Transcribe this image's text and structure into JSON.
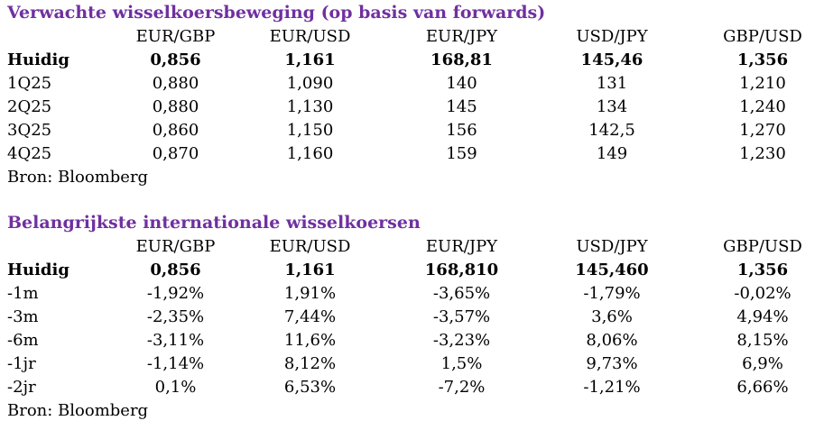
{
  "forwards": {
    "title": "Verwachte wisselkoersbeweging (op basis van forwards)",
    "columns": [
      "EUR/GBP",
      "EUR/USD",
      "EUR/JPY",
      "USD/JPY",
      "GBP/USD"
    ],
    "current": {
      "label": "Huidig",
      "values": [
        "0,856",
        "1,161",
        "168,81",
        "145,46",
        "1,356"
      ]
    },
    "rows": [
      {
        "label": "1Q25",
        "values": [
          "0,880",
          "1,090",
          "140",
          "131",
          "1,210"
        ]
      },
      {
        "label": "2Q25",
        "values": [
          "0,880",
          "1,130",
          "145",
          "134",
          "1,240"
        ]
      },
      {
        "label": "3Q25",
        "values": [
          "0,860",
          "1,150",
          "156",
          "142,5",
          "1,270"
        ]
      },
      {
        "label": "4Q25",
        "values": [
          "0,870",
          "1,160",
          "159",
          "149",
          "1,230"
        ]
      }
    ],
    "source": "Bron: Bloomberg"
  },
  "rates": {
    "title": "Belangrijkste internationale wisselkoersen",
    "columns": [
      "EUR/GBP",
      "EUR/USD",
      "EUR/JPY",
      "USD/JPY",
      "GBP/USD"
    ],
    "current": {
      "label": "Huidig",
      "values": [
        "0,856",
        "1,161",
        "168,810",
        "145,460",
        "1,356"
      ]
    },
    "rows": [
      {
        "label": "-1m",
        "values": [
          "-1,92%",
          "1,91%",
          "-3,65%",
          "-1,79%",
          "-0,02%"
        ]
      },
      {
        "label": "-3m",
        "values": [
          "-2,35%",
          "7,44%",
          "-3,57%",
          "3,6%",
          "4,94%"
        ]
      },
      {
        "label": "-6m",
        "values": [
          "-3,11%",
          "11,6%",
          "-3,23%",
          "8,06%",
          "8,15%"
        ]
      },
      {
        "label": "-1jr",
        "values": [
          "-1,14%",
          "8,12%",
          "1,5%",
          "9,73%",
          "6,9%"
        ]
      },
      {
        "label": "-2jr",
        "values": [
          "0,1%",
          "6,53%",
          "-7,2%",
          "-1,21%",
          "6,66%"
        ]
      }
    ],
    "source": "Bron: Bloomberg"
  },
  "colors": {
    "title": "#7030a0",
    "text": "#000000",
    "background": "#ffffff"
  }
}
